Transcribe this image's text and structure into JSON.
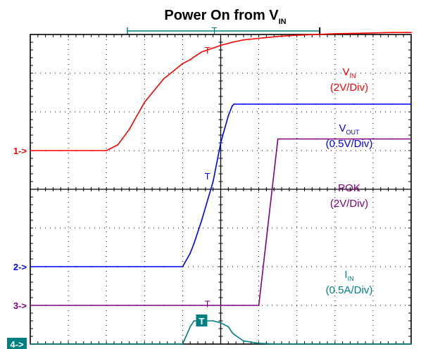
{
  "chart_data": {
    "type": "line",
    "title": "Power On from V",
    "title_subscript": "IN",
    "x": [
      0.0,
      0.4,
      0.8,
      1.2,
      1.6,
      2.0,
      2.3,
      2.6,
      2.8,
      3.0,
      3.5,
      4.0,
      4.2,
      4.3,
      4.5,
      4.8,
      5.0,
      5.2,
      5.3,
      5.35,
      5.6,
      6.0,
      6.5,
      7.0,
      7.5,
      8.0,
      8.5,
      9.0,
      9.5,
      10.0
    ],
    "x_unit": "div",
    "y_unit": "div",
    "grid": true,
    "x_divisions": 10,
    "y_divisions": 8,
    "series": [
      {
        "name": "V",
        "name_subscript": "IN",
        "scale": "(2V/Div)",
        "channel_marker": "1->",
        "color": "#ff0000",
        "values": [
          5.0,
          5.0,
          5.0,
          5.0,
          5.0,
          5.0,
          5.15,
          5.55,
          5.9,
          6.25,
          6.85,
          7.25,
          7.35,
          7.42,
          7.55,
          7.65,
          7.72,
          7.77,
          7.8,
          7.81,
          7.86,
          7.9,
          7.95,
          7.98,
          8.0,
          8.02,
          8.03,
          8.04,
          8.05,
          8.05
        ]
      },
      {
        "name": "V",
        "name_subscript": "OUT",
        "scale": "(0.5V/Div)",
        "channel_marker": "2->",
        "color": "#0000ee",
        "values": [
          2.0,
          2.0,
          2.0,
          2.0,
          2.0,
          2.0,
          2.0,
          2.0,
          2.0,
          2.0,
          2.0,
          2.0,
          2.35,
          2.6,
          3.2,
          4.2,
          5.2,
          5.9,
          6.15,
          6.2,
          6.2,
          6.2,
          6.2,
          6.2,
          6.2,
          6.2,
          6.2,
          6.2,
          6.2,
          6.2
        ]
      },
      {
        "name": "POK",
        "scale": "(2V/Div)",
        "channel_marker": "3->",
        "color": "#800080",
        "values": [
          1.0,
          1.0,
          1.0,
          1.0,
          1.0,
          1.0,
          1.0,
          1.0,
          1.0,
          1.0,
          1.0,
          1.0,
          1.0,
          1.0,
          1.0,
          1.0,
          1.0,
          1.0,
          1.0,
          1.0,
          1.0,
          1.0,
          5.3,
          5.3,
          5.3,
          5.3,
          5.3,
          5.3,
          5.3,
          5.3
        ]
      },
      {
        "name": "I",
        "name_subscript": "IN",
        "scale": "(0.5A/Div)",
        "channel_marker": "4->",
        "color": "#008080",
        "values": [
          0.0,
          0.0,
          0.0,
          0.0,
          0.0,
          0.0,
          0.0,
          0.0,
          0.0,
          0.0,
          0.0,
          0.0,
          0.45,
          0.6,
          0.6,
          0.6,
          0.55,
          0.45,
          0.3,
          0.25,
          0.08,
          0.02,
          0.0,
          0.0,
          0.0,
          0.0,
          0.0,
          0.0,
          0.0,
          0.0
        ]
      }
    ],
    "trigger_label": "T"
  }
}
